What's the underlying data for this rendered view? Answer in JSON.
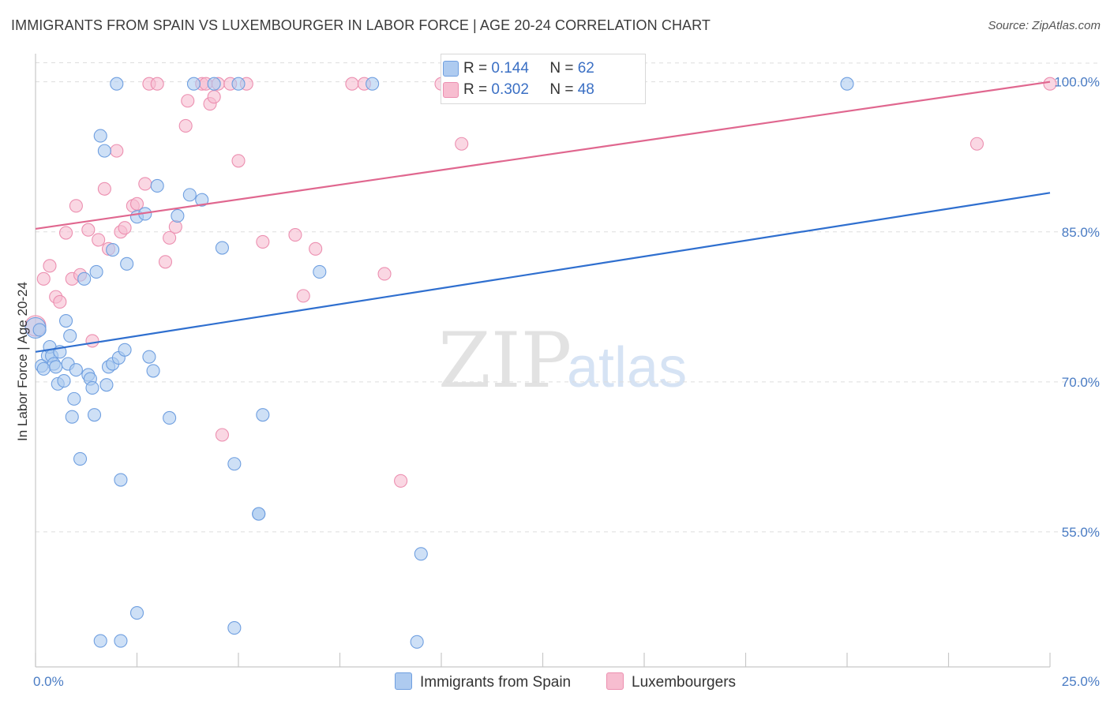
{
  "header": {
    "title": "IMMIGRANTS FROM SPAIN VS LUXEMBOURGER IN LABOR FORCE | AGE 20-24 CORRELATION CHART",
    "source": "Source: ZipAtlas.com"
  },
  "watermark": {
    "zip": "ZIP",
    "atlas": "atlas"
  },
  "legend_top": [
    {
      "r_label": "R =",
      "r_value": "0.144",
      "n_label": "N =",
      "n_value": "62"
    },
    {
      "r_label": "R =",
      "r_value": "0.302",
      "n_label": "N =",
      "n_value": "48"
    }
  ],
  "chart_data": {
    "type": "scatter",
    "title": "IMMIGRANTS FROM SPAIN VS LUXEMBOURGER IN LABOR FORCE | AGE 20-24 CORRELATION CHART",
    "xlabel": "",
    "ylabel": "In Labor Force | Age 20-24",
    "xlim": [
      0,
      25
    ],
    "ylim": [
      41.5,
      102.5
    ],
    "x_tick_labels": [
      "0.0%",
      "25.0%"
    ],
    "y_ticks": [
      55,
      70,
      85,
      100
    ],
    "y_tick_labels": [
      "55.0%",
      "70.0%",
      "85.0%",
      "100.0%"
    ],
    "grid": true,
    "legend_position": "bottom",
    "colors": {
      "blue_fill": "#aecbf0",
      "blue_stroke": "#6f9fe0",
      "blue_line": "#2f6fcf",
      "pink_fill": "#f7bdd0",
      "pink_stroke": "#ec8fb0",
      "pink_line": "#e0678f"
    },
    "series": [
      {
        "name": "Immigrants from Spain",
        "color": "#aecbf0",
        "trend": {
          "x": [
            0,
            25
          ],
          "y": [
            73.0,
            88.9
          ]
        },
        "points": [
          [
            0.0,
            75.4
          ],
          [
            0.1,
            75.2
          ],
          [
            0.15,
            71.6
          ],
          [
            0.3,
            72.6
          ],
          [
            0.35,
            73.5
          ],
          [
            0.4,
            72.6
          ],
          [
            0.45,
            71.8
          ],
          [
            0.5,
            71.5
          ],
          [
            0.55,
            69.8
          ],
          [
            0.6,
            73.0
          ],
          [
            0.7,
            70.1
          ],
          [
            0.75,
            76.1
          ],
          [
            0.8,
            71.8
          ],
          [
            0.85,
            74.6
          ],
          [
            0.9,
            66.5
          ],
          [
            0.95,
            68.3
          ],
          [
            1.0,
            71.2
          ],
          [
            1.1,
            62.3
          ],
          [
            1.2,
            80.3
          ],
          [
            1.3,
            70.7
          ],
          [
            1.35,
            70.3
          ],
          [
            1.4,
            69.4
          ],
          [
            1.45,
            66.7
          ],
          [
            1.5,
            81.0
          ],
          [
            1.6,
            94.6
          ],
          [
            1.7,
            93.1
          ],
          [
            1.75,
            69.7
          ],
          [
            1.8,
            71.5
          ],
          [
            1.9,
            71.8
          ],
          [
            1.9,
            83.2
          ],
          [
            2.0,
            99.8
          ],
          [
            2.05,
            72.4
          ],
          [
            2.1,
            60.2
          ],
          [
            2.2,
            73.2
          ],
          [
            2.25,
            81.8
          ],
          [
            2.5,
            86.5
          ],
          [
            2.5,
            46.9
          ],
          [
            2.7,
            86.8
          ],
          [
            2.8,
            72.5
          ],
          [
            2.9,
            71.1
          ],
          [
            3.0,
            89.6
          ],
          [
            3.3,
            66.4
          ],
          [
            3.5,
            86.6
          ],
          [
            3.8,
            88.7
          ],
          [
            3.9,
            99.8
          ],
          [
            4.1,
            88.2
          ],
          [
            4.4,
            99.8
          ],
          [
            4.6,
            83.4
          ],
          [
            4.9,
            61.8
          ],
          [
            5.0,
            99.8
          ],
          [
            5.5,
            56.8
          ],
          [
            5.5,
            56.8
          ],
          [
            5.6,
            66.7
          ],
          [
            7.0,
            81.0
          ],
          [
            8.3,
            99.8
          ],
          [
            9.5,
            52.8
          ],
          [
            9.4,
            44.0
          ],
          [
            20.0,
            99.8
          ],
          [
            1.6,
            44.1
          ],
          [
            4.9,
            45.4
          ],
          [
            2.1,
            44.1
          ],
          [
            0.2,
            71.3
          ]
        ]
      },
      {
        "name": "Luxembourgers",
        "color": "#f7bdd0",
        "trend": {
          "x": [
            0,
            25
          ],
          "y": [
            85.3,
            100.0
          ]
        },
        "points": [
          [
            0.0,
            75.6
          ],
          [
            0.2,
            80.3
          ],
          [
            0.35,
            81.6
          ],
          [
            0.5,
            78.5
          ],
          [
            0.6,
            78.0
          ],
          [
            0.75,
            84.9
          ],
          [
            0.9,
            80.3
          ],
          [
            1.0,
            87.6
          ],
          [
            1.1,
            80.7
          ],
          [
            1.3,
            85.2
          ],
          [
            1.4,
            74.1
          ],
          [
            1.55,
            84.2
          ],
          [
            1.7,
            89.3
          ],
          [
            1.8,
            83.3
          ],
          [
            2.0,
            93.1
          ],
          [
            2.1,
            85.0
          ],
          [
            2.2,
            85.4
          ],
          [
            2.4,
            87.6
          ],
          [
            2.5,
            87.8
          ],
          [
            2.7,
            89.8
          ],
          [
            2.8,
            99.8
          ],
          [
            3.0,
            99.8
          ],
          [
            3.2,
            82.0
          ],
          [
            3.3,
            84.4
          ],
          [
            3.45,
            85.5
          ],
          [
            3.7,
            95.6
          ],
          [
            3.75,
            98.1
          ],
          [
            4.1,
            99.8
          ],
          [
            4.2,
            99.8
          ],
          [
            4.3,
            97.8
          ],
          [
            4.4,
            98.5
          ],
          [
            4.5,
            99.8
          ],
          [
            4.6,
            64.7
          ],
          [
            4.8,
            99.8
          ],
          [
            5.0,
            92.1
          ],
          [
            5.2,
            99.8
          ],
          [
            5.6,
            84.0
          ],
          [
            6.4,
            84.7
          ],
          [
            6.6,
            78.6
          ],
          [
            6.9,
            83.3
          ],
          [
            7.8,
            99.8
          ],
          [
            8.1,
            99.8
          ],
          [
            8.6,
            80.8
          ],
          [
            9.0,
            60.1
          ],
          [
            10.0,
            99.8
          ],
          [
            10.5,
            93.8
          ],
          [
            23.2,
            93.8
          ],
          [
            25.0,
            99.8
          ]
        ]
      }
    ]
  },
  "legend_bottom": [
    "Immigrants from Spain",
    "Luxembourgers"
  ]
}
